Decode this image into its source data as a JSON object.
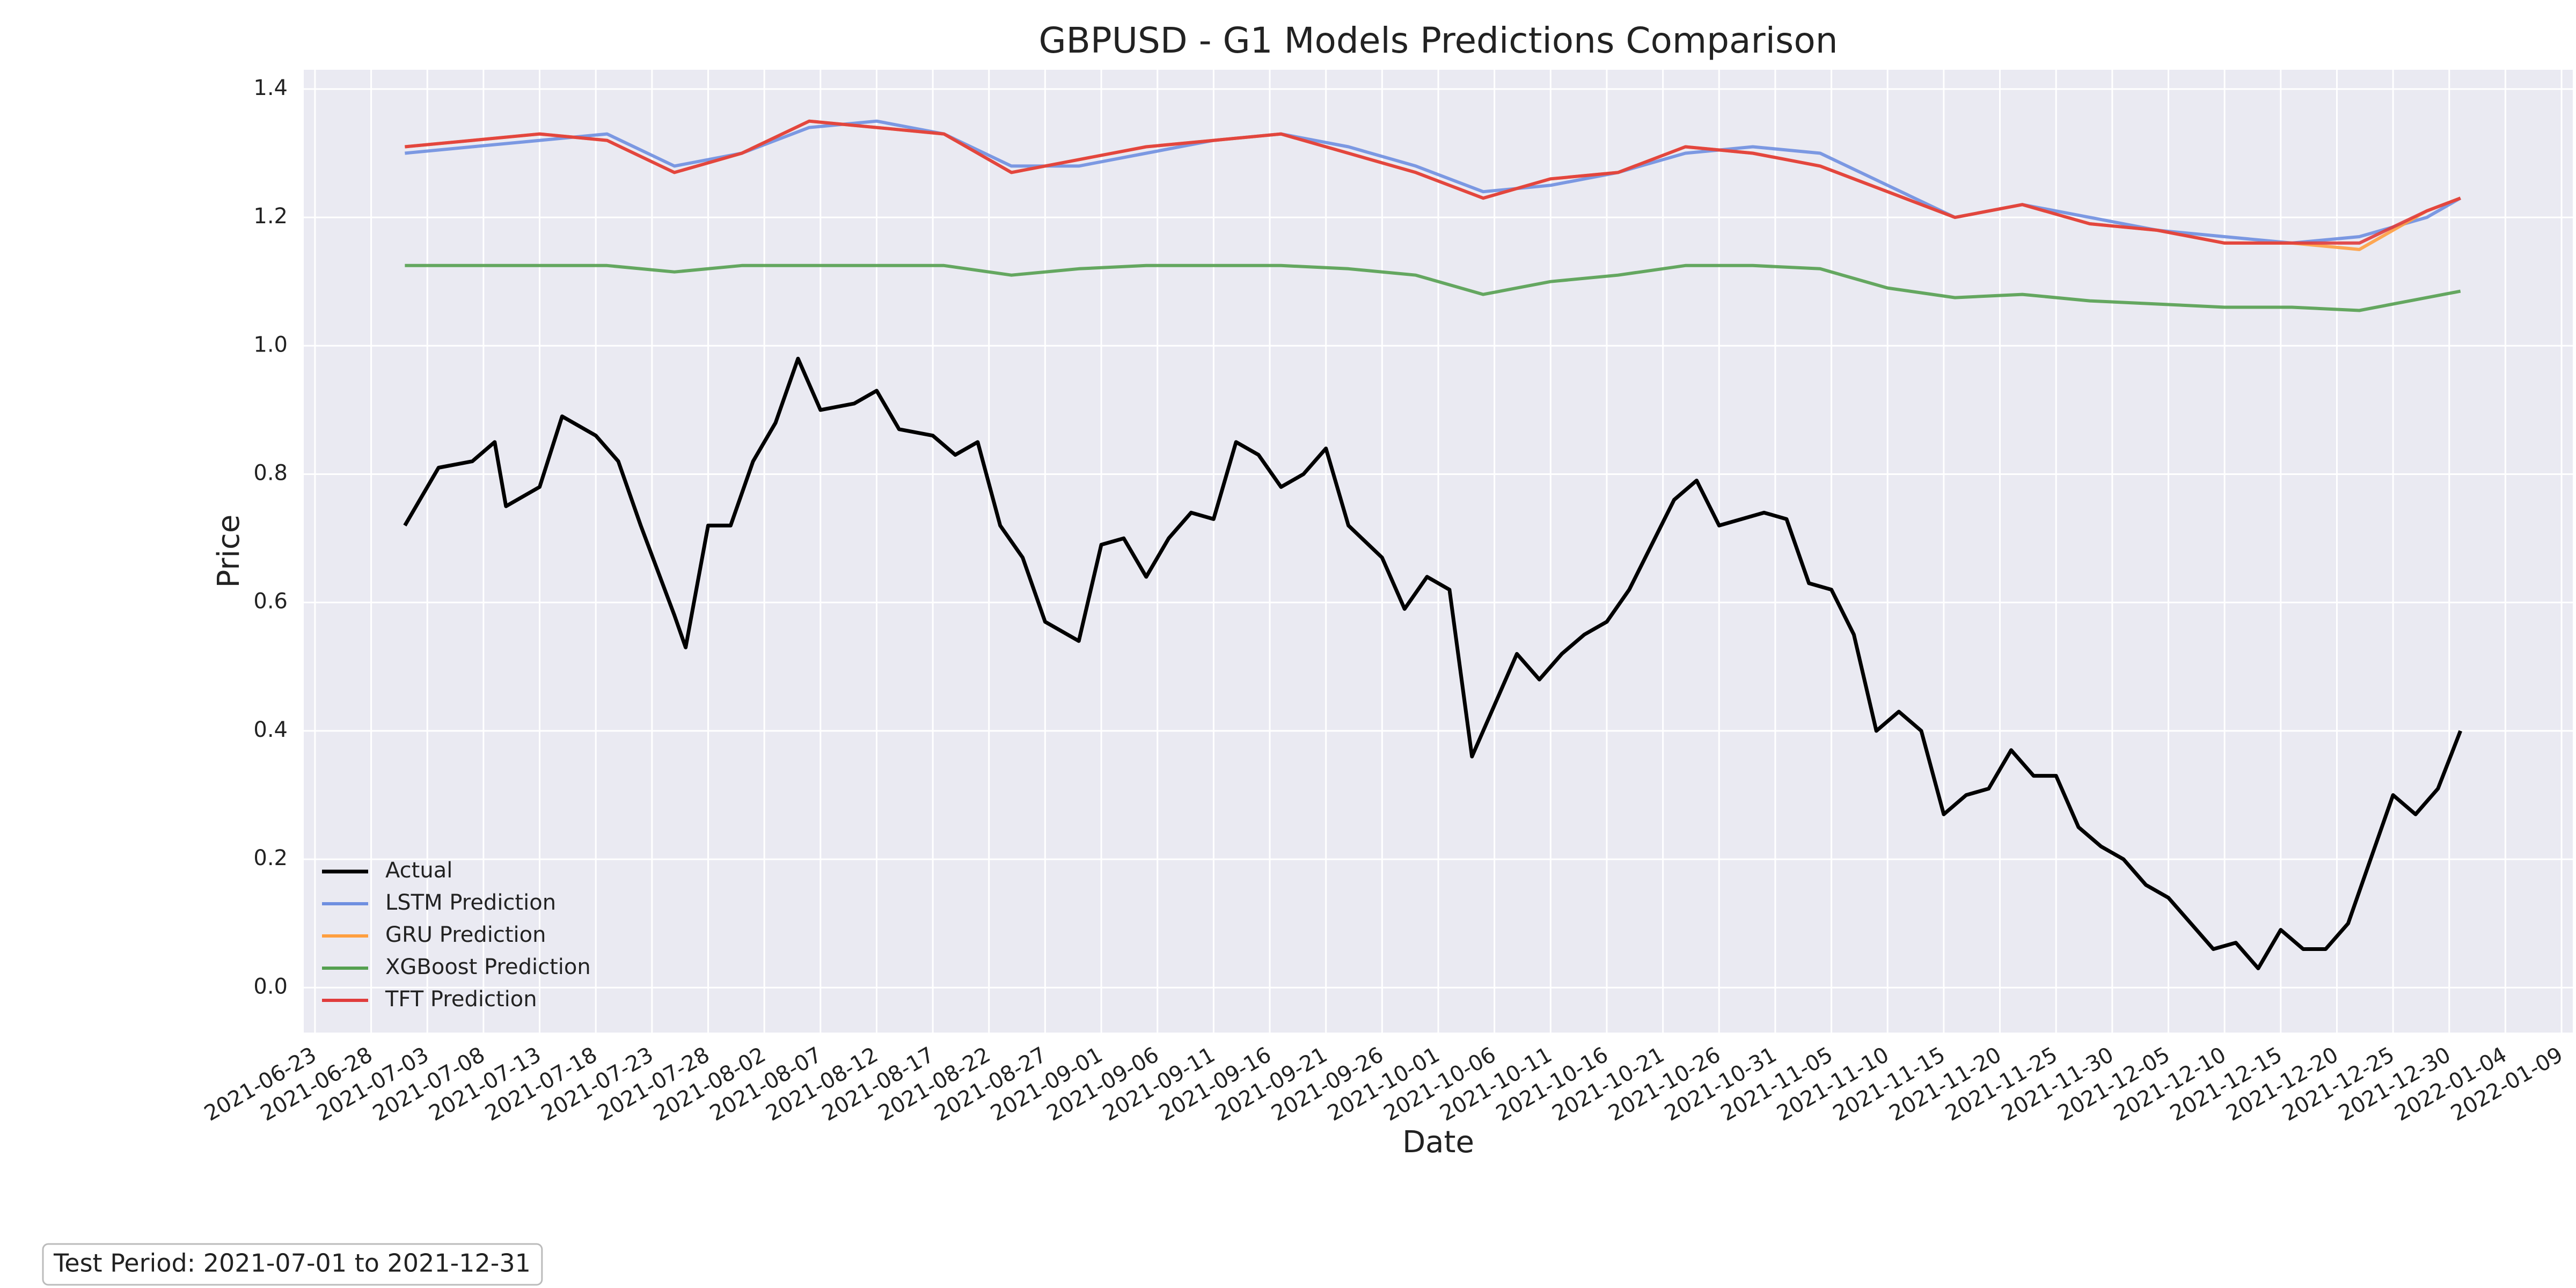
{
  "chart_data": {
    "type": "line",
    "title": "GBPUSD - G1 Models Predictions Comparison",
    "xlabel": "Date",
    "ylabel": "Price",
    "annotation": "Test Period: 2021-07-01 to 2021-12-31",
    "xlim": [
      "2021-06-22",
      "2022-01-10"
    ],
    "xticks": [
      "2021-06-23",
      "2021-06-28",
      "2021-07-03",
      "2021-07-08",
      "2021-07-13",
      "2021-07-18",
      "2021-07-23",
      "2021-07-28",
      "2021-08-02",
      "2021-08-07",
      "2021-08-12",
      "2021-08-17",
      "2021-08-22",
      "2021-08-27",
      "2021-09-01",
      "2021-09-06",
      "2021-09-11",
      "2021-09-16",
      "2021-09-21",
      "2021-09-26",
      "2021-10-01",
      "2021-10-06",
      "2021-10-11",
      "2021-10-16",
      "2021-10-21",
      "2021-10-26",
      "2021-10-31",
      "2021-11-05",
      "2021-11-10",
      "2021-11-15",
      "2021-11-20",
      "2021-11-25",
      "2021-11-30",
      "2021-12-05",
      "2021-12-10",
      "2021-12-15",
      "2021-12-20",
      "2021-12-25",
      "2021-12-30",
      "2022-01-04",
      "2022-01-09"
    ],
    "ylim": [
      -0.07,
      1.43
    ],
    "yticks": [
      {
        "value": 0,
        "label": "0.0"
      },
      0.2,
      0.4,
      0.6,
      0.8,
      {
        "value": 1,
        "label": "1.0"
      },
      1.2,
      1.4
    ],
    "grid": true,
    "legend": "lower left",
    "series": [
      {
        "name": "Actual",
        "color": "#000000",
        "x": [
          "2021-07-01",
          "2021-07-04",
          "2021-07-07",
          "2021-07-09",
          "2021-07-10",
          "2021-07-13",
          "2021-07-15",
          "2021-07-18",
          "2021-07-20",
          "2021-07-22",
          "2021-07-25",
          "2021-07-26",
          "2021-07-28",
          "2021-07-30",
          "2021-08-01",
          "2021-08-03",
          "2021-08-05",
          "2021-08-07",
          "2021-08-10",
          "2021-08-12",
          "2021-08-14",
          "2021-08-17",
          "2021-08-19",
          "2021-08-21",
          "2021-08-23",
          "2021-08-25",
          "2021-08-27",
          "2021-08-30",
          "2021-09-01",
          "2021-09-03",
          "2021-09-05",
          "2021-09-07",
          "2021-09-09",
          "2021-09-11",
          "2021-09-13",
          "2021-09-15",
          "2021-09-17",
          "2021-09-19",
          "2021-09-21",
          "2021-09-23",
          "2021-09-26",
          "2021-09-28",
          "2021-09-30",
          "2021-10-02",
          "2021-10-04",
          "2021-10-06",
          "2021-10-08",
          "2021-10-10",
          "2021-10-12",
          "2021-10-14",
          "2021-10-16",
          "2021-10-18",
          "2021-10-20",
          "2021-10-22",
          "2021-10-24",
          "2021-10-26",
          "2021-10-28",
          "2021-10-30",
          "2021-11-01",
          "2021-11-03",
          "2021-11-05",
          "2021-11-07",
          "2021-11-09",
          "2021-11-11",
          "2021-11-13",
          "2021-11-15",
          "2021-11-17",
          "2021-11-19",
          "2021-11-21",
          "2021-11-23",
          "2021-11-25",
          "2021-11-27",
          "2021-11-29",
          "2021-12-01",
          "2021-12-03",
          "2021-12-05",
          "2021-12-07",
          "2021-12-09",
          "2021-12-11",
          "2021-12-13",
          "2021-12-15",
          "2021-12-17",
          "2021-12-19",
          "2021-12-21",
          "2021-12-23",
          "2021-12-25",
          "2021-12-27",
          "2021-12-29",
          "2021-12-31"
        ],
        "values": [
          0.72,
          0.81,
          0.82,
          0.85,
          0.75,
          0.78,
          0.89,
          0.86,
          0.82,
          0.72,
          0.58,
          0.53,
          0.72,
          0.72,
          0.82,
          0.88,
          0.98,
          0.9,
          0.91,
          0.93,
          0.87,
          0.86,
          0.83,
          0.85,
          0.72,
          0.67,
          0.57,
          0.54,
          0.69,
          0.7,
          0.64,
          0.7,
          0.74,
          0.73,
          0.85,
          0.83,
          0.78,
          0.8,
          0.84,
          0.72,
          0.67,
          0.59,
          0.64,
          0.62,
          0.36,
          0.44,
          0.52,
          0.48,
          0.52,
          0.55,
          0.57,
          0.62,
          0.69,
          0.76,
          0.79,
          0.72,
          0.73,
          0.74,
          0.73,
          0.63,
          0.62,
          0.55,
          0.4,
          0.43,
          0.4,
          0.27,
          0.3,
          0.31,
          0.37,
          0.33,
          0.33,
          0.25,
          0.22,
          0.2,
          0.16,
          0.14,
          0.1,
          0.06,
          0.07,
          0.03,
          0.09,
          0.06,
          0.06,
          0.1,
          0.2,
          0.3,
          0.27,
          0.31,
          0.4
        ]
      },
      {
        "name": "LSTM Prediction",
        "color": "#6f8fe0",
        "x": [
          "2021-07-01",
          "2021-07-07",
          "2021-07-13",
          "2021-07-19",
          "2021-07-25",
          "2021-07-31",
          "2021-08-06",
          "2021-08-12",
          "2021-08-18",
          "2021-08-24",
          "2021-08-30",
          "2021-09-05",
          "2021-09-11",
          "2021-09-17",
          "2021-09-23",
          "2021-09-29",
          "2021-10-05",
          "2021-10-11",
          "2021-10-17",
          "2021-10-23",
          "2021-10-29",
          "2021-11-04",
          "2021-11-10",
          "2021-11-16",
          "2021-11-22",
          "2021-11-28",
          "2021-12-04",
          "2021-12-10",
          "2021-12-16",
          "2021-12-22",
          "2021-12-28",
          "2021-12-31"
        ],
        "values": [
          1.3,
          1.31,
          1.32,
          1.33,
          1.28,
          1.3,
          1.34,
          1.35,
          1.33,
          1.28,
          1.28,
          1.3,
          1.32,
          1.33,
          1.31,
          1.28,
          1.24,
          1.25,
          1.27,
          1.3,
          1.31,
          1.3,
          1.25,
          1.2,
          1.22,
          1.2,
          1.18,
          1.17,
          1.16,
          1.17,
          1.2,
          1.23
        ]
      },
      {
        "name": "GRU Prediction",
        "color": "#ff9f40",
        "x": [
          "2021-07-01",
          "2021-07-07",
          "2021-07-13",
          "2021-07-19",
          "2021-07-25",
          "2021-07-31",
          "2021-08-06",
          "2021-08-12",
          "2021-08-18",
          "2021-08-24",
          "2021-08-30",
          "2021-09-05",
          "2021-09-11",
          "2021-09-17",
          "2021-09-23",
          "2021-09-29",
          "2021-10-05",
          "2021-10-11",
          "2021-10-17",
          "2021-10-23",
          "2021-10-29",
          "2021-11-04",
          "2021-11-10",
          "2021-11-16",
          "2021-11-22",
          "2021-11-28",
          "2021-12-04",
          "2021-12-10",
          "2021-12-16",
          "2021-12-22",
          "2021-12-28",
          "2021-12-31"
        ],
        "values": [
          1.31,
          1.32,
          1.33,
          1.32,
          1.27,
          1.3,
          1.35,
          1.34,
          1.33,
          1.27,
          1.29,
          1.31,
          1.32,
          1.33,
          1.3,
          1.27,
          1.23,
          1.26,
          1.27,
          1.31,
          1.3,
          1.28,
          1.24,
          1.2,
          1.22,
          1.19,
          1.18,
          1.16,
          1.16,
          1.15,
          1.21,
          1.23
        ]
      },
      {
        "name": "XGBoost Prediction",
        "color": "#55a050",
        "x": [
          "2021-07-01",
          "2021-07-07",
          "2021-07-13",
          "2021-07-19",
          "2021-07-25",
          "2021-07-31",
          "2021-08-06",
          "2021-08-12",
          "2021-08-18",
          "2021-08-24",
          "2021-08-30",
          "2021-09-05",
          "2021-09-11",
          "2021-09-17",
          "2021-09-23",
          "2021-09-29",
          "2021-10-05",
          "2021-10-11",
          "2021-10-17",
          "2021-10-23",
          "2021-10-29",
          "2021-11-04",
          "2021-11-10",
          "2021-11-16",
          "2021-11-22",
          "2021-11-28",
          "2021-12-04",
          "2021-12-10",
          "2021-12-16",
          "2021-12-22",
          "2021-12-28",
          "2021-12-31"
        ],
        "values": [
          1.125,
          1.125,
          1.125,
          1.125,
          1.115,
          1.125,
          1.125,
          1.125,
          1.125,
          1.11,
          1.12,
          1.125,
          1.125,
          1.125,
          1.12,
          1.11,
          1.08,
          1.1,
          1.11,
          1.125,
          1.125,
          1.12,
          1.09,
          1.075,
          1.08,
          1.07,
          1.065,
          1.06,
          1.06,
          1.055,
          1.075,
          1.085
        ]
      },
      {
        "name": "TFT Prediction",
        "color": "#e03c3c",
        "x": [
          "2021-07-01",
          "2021-07-07",
          "2021-07-13",
          "2021-07-19",
          "2021-07-25",
          "2021-07-31",
          "2021-08-06",
          "2021-08-12",
          "2021-08-18",
          "2021-08-24",
          "2021-08-30",
          "2021-09-05",
          "2021-09-11",
          "2021-09-17",
          "2021-09-23",
          "2021-09-29",
          "2021-10-05",
          "2021-10-11",
          "2021-10-17",
          "2021-10-23",
          "2021-10-29",
          "2021-11-04",
          "2021-11-10",
          "2021-11-16",
          "2021-11-22",
          "2021-11-28",
          "2021-12-04",
          "2021-12-10",
          "2021-12-16",
          "2021-12-22",
          "2021-12-28",
          "2021-12-31"
        ],
        "values": [
          1.31,
          1.32,
          1.33,
          1.32,
          1.27,
          1.3,
          1.35,
          1.34,
          1.33,
          1.27,
          1.29,
          1.31,
          1.32,
          1.33,
          1.3,
          1.27,
          1.23,
          1.26,
          1.27,
          1.31,
          1.3,
          1.28,
          1.24,
          1.2,
          1.22,
          1.19,
          1.18,
          1.16,
          1.16,
          1.16,
          1.21,
          1.23
        ]
      }
    ]
  }
}
